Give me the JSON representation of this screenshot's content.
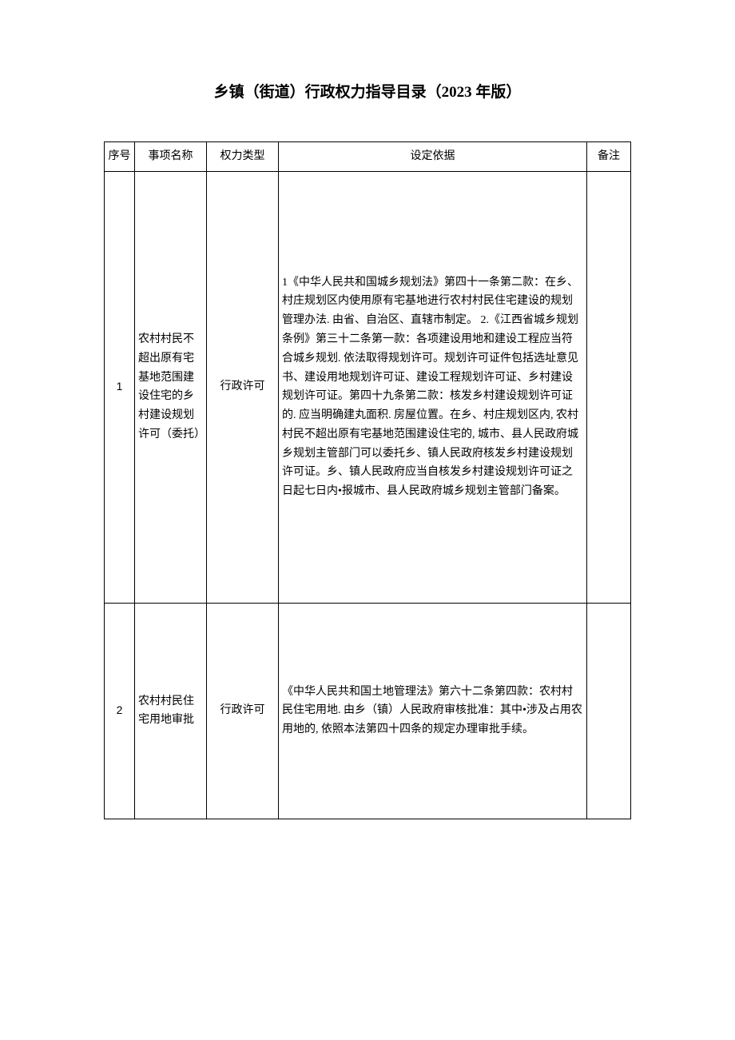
{
  "title": "乡镇（街道）行政权力指导目录（2023 年版）",
  "title_fontsize": 19,
  "header_fontsize": 14,
  "body_fontsize": 14,
  "columns": {
    "seq": "序号",
    "name": "事项名称",
    "type": "权力类型",
    "basis": "设定依据",
    "remark": "备注"
  },
  "rows": [
    {
      "seq": "1",
      "name": "农村村民不超出原有宅基地范围建设住宅的乡村建设规划许可（委托）",
      "type": "行政许可",
      "basis": "1《中华人民共和国城乡规划法》第四十一条第二款：在乡、村庄规划区内使用原有宅基地进行农村村民住宅建设的规划管理办法. 由省、自治区、直辖市制定。\n2.《江西省城乡规划条例》第三十二条第一款：各项建设用地和建设工程应当符合城乡规划. 依法取得规划许可。规划许可证件包括选址意见书、建设用地规划许可证、建设工程规划许可证、乡村建设规划许可证。第四十九条第二款：核发乡村建设规划许可证的. 应当明确建丸面积. 房屋位置。在乡、村庄规划区内, 农村村民不超出原有宅基地范围建设住宅的, 城市、县人民政府城乡规划主管部门可以委托乡、镇人民政府核发乡村建设规划许可证。乡、镇人民政府应当自核发乡村建设规划许可证之日起七日内•报城市、县人民政府城乡规划主管部门备案。",
      "remark": ""
    },
    {
      "seq": "2",
      "name": "农村村民住宅用地审批",
      "type": "行政许可",
      "basis": "《中华人民共和国土地管理法》第六十二条第四款：农村村民住宅用地. 由乡（镇）人民政府审核批准：其中•涉及占用农用地的, 依照本法第四十四条的规定办理审批手续。",
      "remark": ""
    }
  ],
  "colors": {
    "text": "#000000",
    "border": "#000000",
    "background": "#ffffff"
  }
}
